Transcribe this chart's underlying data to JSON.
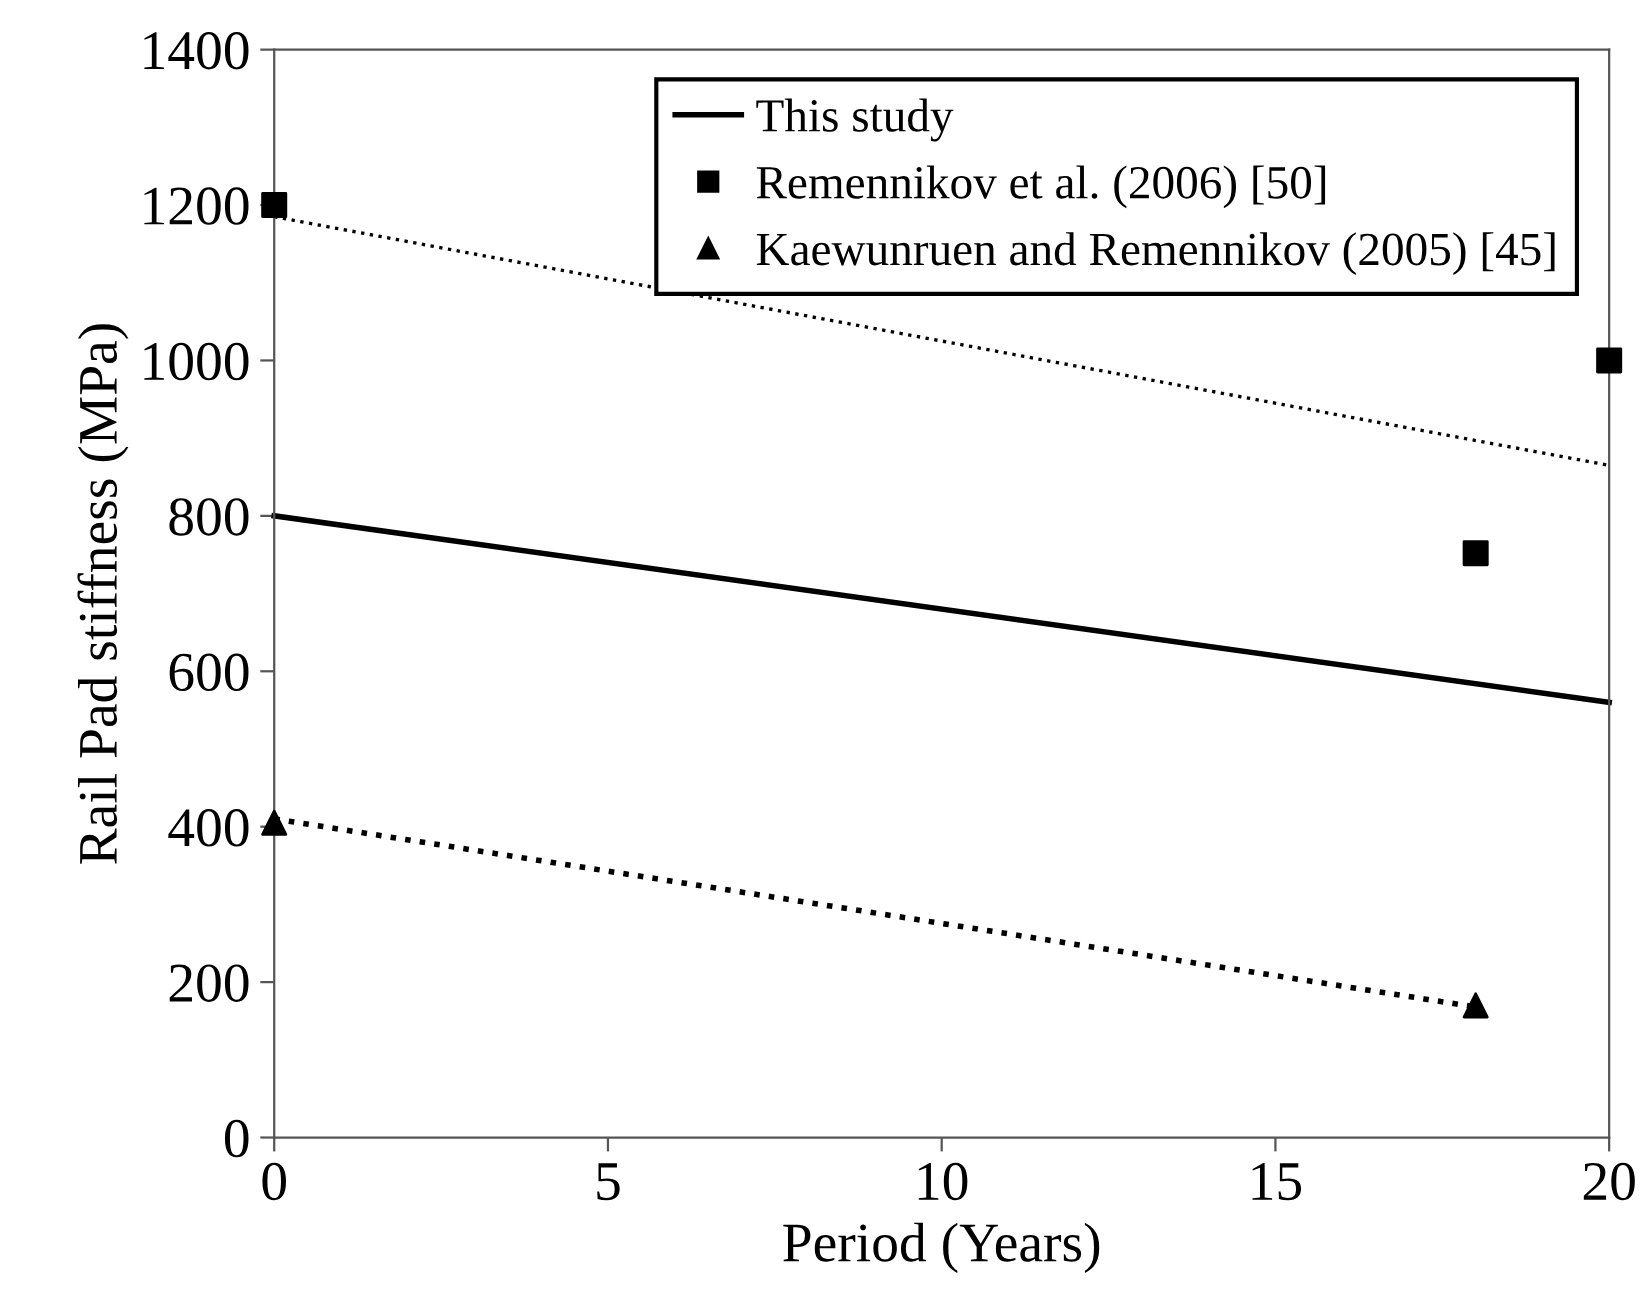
{
  "chart_data": {
    "type": "line",
    "xlabel": "Period (Years)",
    "ylabel": "Rail Pad stiffness (MPa)",
    "xlim": [
      0,
      20
    ],
    "xticks": [
      0,
      5,
      10,
      15,
      20
    ],
    "ylim": [
      0,
      1400
    ],
    "yticks": [
      0,
      200,
      400,
      600,
      800,
      1000,
      1200,
      1400
    ],
    "grid": false,
    "legend": "top right",
    "series": [
      {
        "name": "This study",
        "color": "#000000",
        "x": [
          0,
          20
        ],
        "values": [
          800,
          560
        ],
        "marker": "none",
        "line_style": "solid"
      },
      {
        "name": "Remennikov et al. (2006) [50]",
        "type": "scatter",
        "color": "#000000",
        "x": [
          0,
          18,
          20
        ],
        "values": [
          1200,
          752,
          1000
        ],
        "marker": "square"
      },
      {
        "color": "#000000",
        "x": [
          0,
          20
        ],
        "values": [
          1185,
          865
        ],
        "marker": "none",
        "line_style": "dotted"
      },
      {
        "name": "Kaewunruen and Remennikov (2005) [45]",
        "type": "scatter",
        "color": "#000000",
        "x": [
          0,
          18
        ],
        "values": [
          405,
          170
        ],
        "marker": "triangle"
      },
      {
        "color": "#000000",
        "x": [
          0,
          18
        ],
        "values": [
          410,
          168
        ],
        "marker": "none",
        "line_style": "dotted"
      }
    ]
  }
}
